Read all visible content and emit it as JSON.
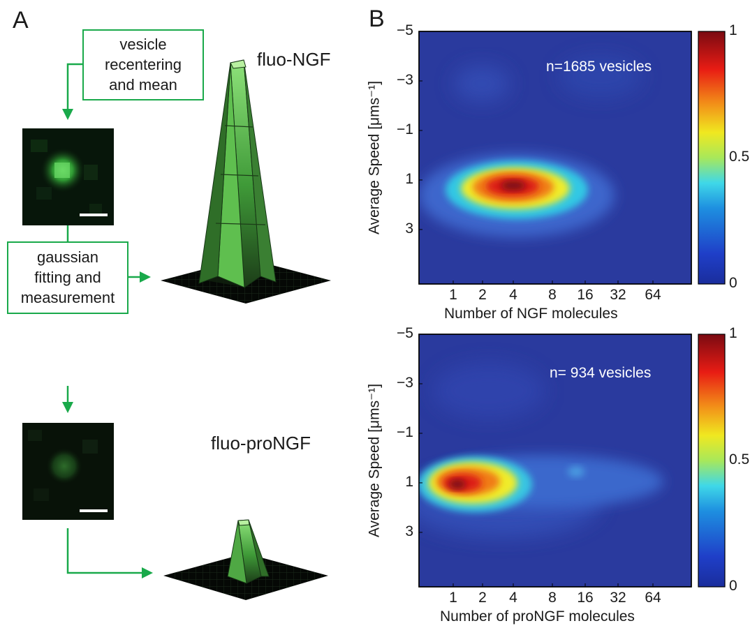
{
  "panels": {
    "a": "A",
    "b": "B"
  },
  "panel_a": {
    "box_recenter": {
      "line1": "vesicle",
      "line2": "recentering",
      "line3": "and mean"
    },
    "box_fit": {
      "line1": "gaussian",
      "line2": "fitting and",
      "line3": "measurement"
    },
    "label_ngf": "fluo-NGF",
    "label_prongf": "fluo-proNGF",
    "colors": {
      "arrow": "#19a94a",
      "surface_light": "#7bd36b",
      "surface_dark": "#1e3d18"
    }
  },
  "colorbar": {
    "ticks": [
      "1",
      "0.5",
      "0"
    ],
    "colormap": "jet"
  },
  "chart_data": [
    {
      "type": "heatmap",
      "title": "",
      "annotation": "n=1685 vesicles",
      "xlabel": "Number of NGF molecules",
      "ylabel": "Average Speed [μms⁻¹]",
      "x_ticks": [
        "1",
        "2",
        "4",
        "8",
        "16",
        "32",
        "64"
      ],
      "y_ticks": [
        "−5",
        "−3",
        "−1",
        "1",
        "3"
      ],
      "x_scale": "log2",
      "ylim": [
        5.2,
        -5
      ],
      "peak": {
        "x": 4,
        "y": 1,
        "value": 1
      },
      "colorbar_range": [
        0,
        1
      ]
    },
    {
      "type": "heatmap",
      "title": "",
      "annotation": "n= 934 vesicles",
      "xlabel": "Number of proNGF molecules",
      "ylabel": "Average Speed [μms⁻¹]",
      "x_ticks": [
        "1",
        "2",
        "4",
        "8",
        "16",
        "32",
        "64"
      ],
      "y_ticks": [
        "−5",
        "−3",
        "−1",
        "1",
        "3"
      ],
      "x_scale": "log2",
      "ylim": [
        5.2,
        -5
      ],
      "peak": {
        "x": 1.2,
        "y": 1,
        "value": 1
      },
      "colorbar_range": [
        0,
        1
      ]
    }
  ]
}
